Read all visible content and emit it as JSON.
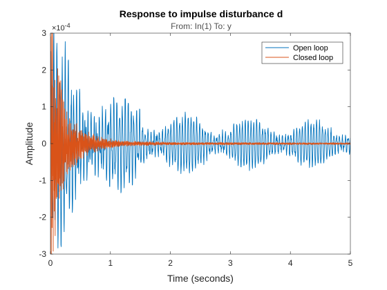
{
  "chart_data": {
    "type": "line",
    "title": "Response to impulse disturbance d",
    "subtitle": "From: In(1)  To: y",
    "xlabel": "Time (seconds)",
    "ylabel": "Amplitude",
    "y_exponent_label": "×10^-4",
    "y_exponent_base": "×10",
    "y_exponent_power": "-4",
    "xlim": [
      0,
      5
    ],
    "ylim": [
      -3,
      3
    ],
    "y_scale_factor": 0.0001,
    "x_ticks": [
      "0",
      "1",
      "2",
      "3",
      "4",
      "5"
    ],
    "y_ticks": [
      "-3",
      "-2",
      "-1",
      "0",
      "1",
      "2",
      "3"
    ],
    "grid": false,
    "legend_position": "top-right",
    "series": [
      {
        "name": "Open loop",
        "color": "#0072BD",
        "t_end": 5,
        "peak_amplitude": 2.5,
        "envelope": [
          [
            0,
            2.5
          ],
          [
            0.3,
            1.9
          ],
          [
            0.6,
            1.4
          ],
          [
            1.0,
            1.1
          ],
          [
            1.5,
            0.9
          ],
          [
            2.0,
            0.75
          ],
          [
            3.0,
            0.65
          ],
          [
            4.0,
            0.6
          ],
          [
            5.0,
            0.55
          ]
        ],
        "oscillation_hz": 21
      },
      {
        "name": "Closed loop",
        "color": "#D95319",
        "t_end": 5,
        "peak_amplitude": 2.9,
        "envelope": [
          [
            0,
            2.9
          ],
          [
            0.1,
            2.0
          ],
          [
            0.2,
            1.2
          ],
          [
            0.3,
            0.7
          ],
          [
            0.5,
            0.35
          ],
          [
            0.8,
            0.15
          ],
          [
            1.2,
            0.06
          ],
          [
            2.0,
            0.03
          ],
          [
            5.0,
            0.02
          ]
        ],
        "oscillation_hz": 60
      }
    ]
  }
}
